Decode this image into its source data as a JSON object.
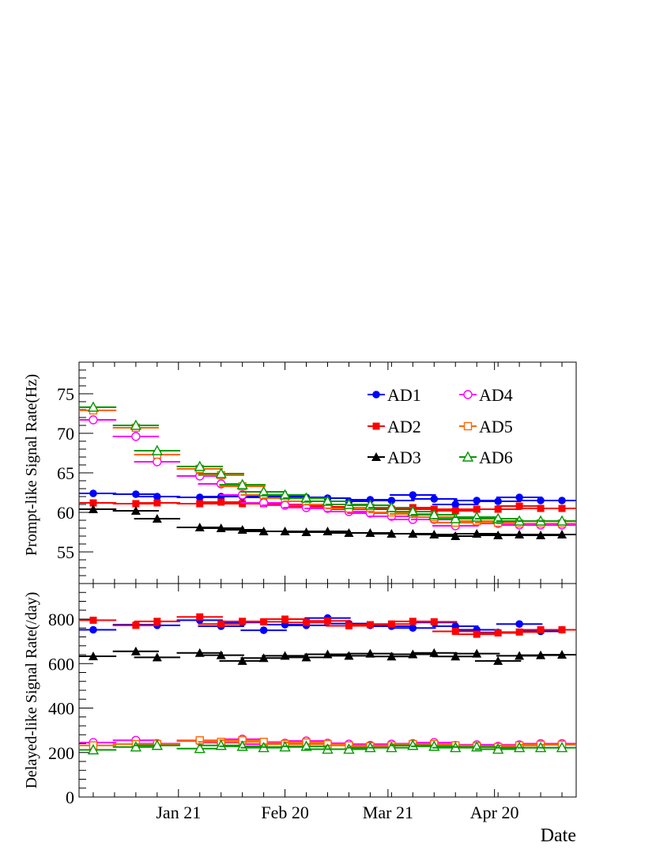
{
  "chart_data": [
    {
      "type": "scatter",
      "xlabel": "Date",
      "ylabel": "Prompt-like Signal Rate(Hz)",
      "ylim": [
        51,
        79
      ],
      "yticks": [
        55,
        60,
        65,
        70,
        75
      ],
      "xticks": [
        "Jan 21",
        "Feb 20",
        "Mar 21",
        "Apr 20"
      ],
      "xtick_days": [
        21,
        51,
        80,
        110
      ],
      "xlim_days": [
        -7,
        133
      ],
      "x_days": [
        -3,
        9,
        15,
        27,
        33,
        39,
        45,
        51,
        57,
        63,
        69,
        75,
        81,
        87,
        93,
        99,
        105,
        111,
        117,
        123,
        129
      ],
      "legend": {
        "placement": "top-right",
        "columns": 2
      },
      "series": [
        {
          "name": "AD1",
          "color": "#0000ff",
          "marker": "circle-filled",
          "values": [
            62.4,
            62.3,
            62.0,
            61.9,
            62.0,
            62.0,
            61.9,
            62.0,
            61.9,
            61.8,
            61.4,
            61.6,
            61.5,
            62.2,
            61.7,
            61.0,
            61.5,
            61.4,
            61.9,
            61.5,
            61.5
          ]
        },
        {
          "name": "AD2",
          "color": "#ff0000",
          "marker": "square-filled",
          "values": [
            61.2,
            61.1,
            61.2,
            61.1,
            61.3,
            61.1,
            61.1,
            61.0,
            60.8,
            60.7,
            60.4,
            60.5,
            60.4,
            60.6,
            60.4,
            60.2,
            60.4,
            60.4,
            60.8,
            60.5,
            60.5
          ]
        },
        {
          "name": "AD3",
          "color": "#000000",
          "marker": "triangle-filled",
          "values": [
            60.4,
            60.2,
            59.2,
            58.1,
            58.0,
            57.8,
            57.6,
            57.6,
            57.5,
            57.6,
            57.4,
            57.4,
            57.3,
            57.3,
            57.2,
            57.0,
            57.3,
            57.1,
            57.2,
            57.1,
            57.2
          ]
        },
        {
          "name": "AD4",
          "color": "#ff00ff",
          "marker": "circle-open",
          "values": [
            71.7,
            69.6,
            66.4,
            64.6,
            63.6,
            62.2,
            61.2,
            60.9,
            60.6,
            60.5,
            60.1,
            59.9,
            59.5,
            59.1,
            59.1,
            58.3,
            58.8,
            58.6,
            58.4,
            58.4,
            58.4
          ]
        },
        {
          "name": "AD5",
          "color": "#ff6600",
          "marker": "square-open",
          "values": [
            72.9,
            70.7,
            67.3,
            65.5,
            64.7,
            63.3,
            62.2,
            61.8,
            61.4,
            61.0,
            60.5,
            60.6,
            60.0,
            59.8,
            59.4,
            58.7,
            58.9,
            58.7,
            58.6,
            58.6,
            58.6
          ]
        },
        {
          "name": "AD6",
          "color": "#009900",
          "marker": "triangle-open",
          "values": [
            73.3,
            71.0,
            67.8,
            65.8,
            64.9,
            63.5,
            62.6,
            62.2,
            61.8,
            61.4,
            61.0,
            60.9,
            60.6,
            60.1,
            59.7,
            59.2,
            59.4,
            59.2,
            58.9,
            58.9,
            58.9
          ]
        }
      ]
    },
    {
      "type": "scatter",
      "xlabel": "Date",
      "ylabel": "Delayed-like Signal Rate(/day)",
      "ylim": [
        0,
        960
      ],
      "yticks": [
        0,
        200,
        400,
        600,
        800
      ],
      "xticks": [
        "Jan 21",
        "Feb 20",
        "Mar 21",
        "Apr 20"
      ],
      "xtick_days": [
        21,
        51,
        80,
        110
      ],
      "xlim_days": [
        -7,
        133
      ],
      "x_days": [
        -3,
        9,
        15,
        27,
        33,
        39,
        45,
        51,
        57,
        63,
        69,
        75,
        81,
        87,
        93,
        99,
        105,
        111,
        117,
        123,
        129
      ],
      "series": [
        {
          "name": "AD1",
          "color": "#0000ff",
          "marker": "circle-filled",
          "values": [
            752,
            775,
            772,
            795,
            768,
            785,
            750,
            775,
            772,
            805,
            780,
            772,
            768,
            760,
            785,
            768,
            752,
            740,
            778,
            745,
            752
          ]
        },
        {
          "name": "AD2",
          "color": "#ff0000",
          "marker": "square-filled",
          "values": [
            795,
            772,
            790,
            810,
            778,
            790,
            788,
            800,
            785,
            792,
            770,
            775,
            778,
            790,
            788,
            745,
            732,
            738,
            742,
            752,
            752
          ]
        },
        {
          "name": "AD3",
          "color": "#000000",
          "marker": "triangle-filled",
          "values": [
            633,
            655,
            628,
            648,
            638,
            612,
            625,
            635,
            628,
            642,
            635,
            645,
            632,
            642,
            648,
            632,
            645,
            612,
            635,
            638,
            640
          ]
        },
        {
          "name": "AD4",
          "color": "#ff00ff",
          "marker": "circle-open",
          "values": [
            245,
            255,
            240,
            252,
            245,
            260,
            238,
            242,
            252,
            242,
            238,
            232,
            238,
            240,
            245,
            232,
            235,
            228,
            235,
            240,
            240
          ]
        },
        {
          "name": "AD5",
          "color": "#ff6600",
          "marker": "square-open",
          "values": [
            232,
            238,
            238,
            255,
            248,
            255,
            248,
            238,
            245,
            238,
            232,
            228,
            232,
            238,
            238,
            232,
            228,
            225,
            232,
            235,
            235
          ]
        },
        {
          "name": "AD6",
          "color": "#009900",
          "marker": "triangle-open",
          "values": [
            212,
            225,
            232,
            218,
            232,
            228,
            222,
            225,
            228,
            215,
            215,
            222,
            222,
            232,
            228,
            222,
            225,
            215,
            222,
            222,
            222
          ]
        }
      ]
    }
  ]
}
